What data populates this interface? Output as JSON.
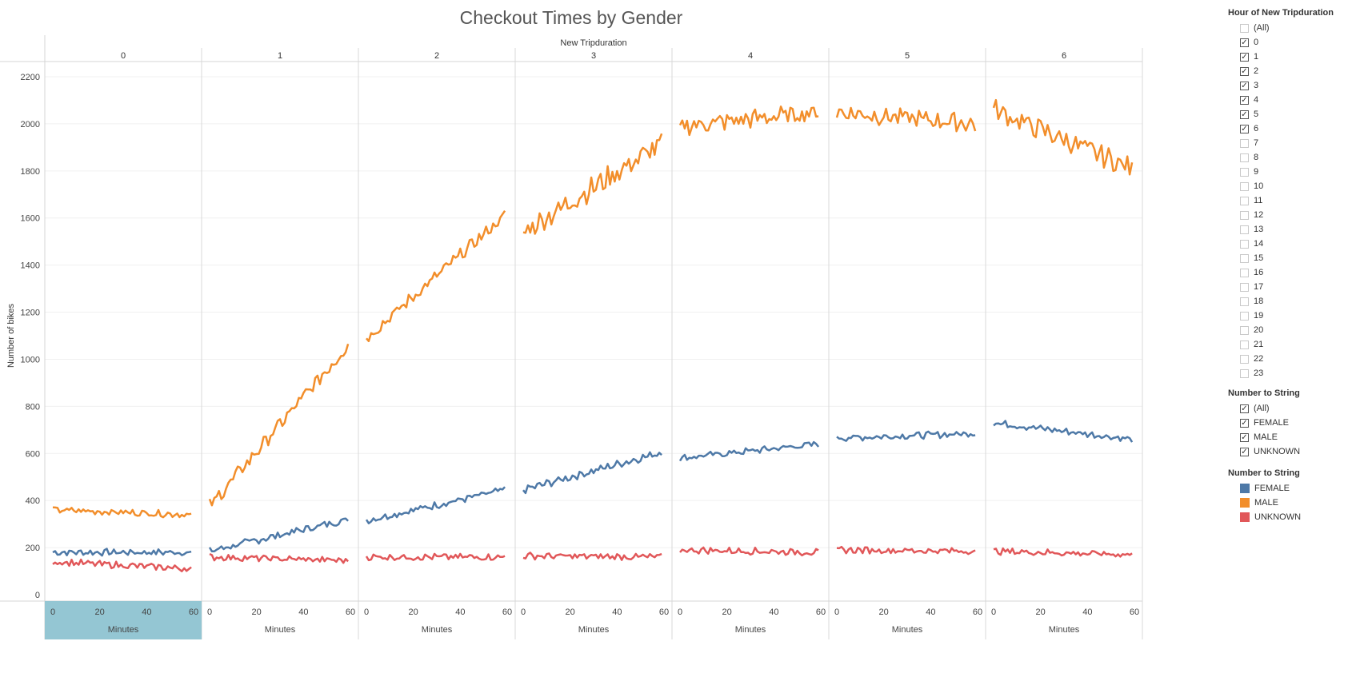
{
  "chart_data": {
    "type": "line",
    "title": "Checkout Times by Gender",
    "panel_header": "New Tripduration",
    "panels": [
      "0",
      "1",
      "2",
      "3",
      "4",
      "5",
      "6"
    ],
    "ylabel": "Number of bikes",
    "xlabel": "Minutes",
    "ylim": [
      0,
      2200
    ],
    "yticks": [
      0,
      200,
      400,
      600,
      800,
      1000,
      1200,
      1400,
      1600,
      1800,
      2000,
      2200
    ],
    "xticks": [
      0,
      20,
      40,
      60
    ],
    "xlim": [
      0,
      60
    ],
    "grid": true,
    "highlighted_panel": "0",
    "series_info": [
      {
        "name": "FEMALE",
        "color": "#4e79a7",
        "anchors": [
          [
            180,
            180
          ],
          [
            185,
            320
          ],
          [
            315,
            445
          ],
          [
            445,
            605
          ],
          [
            580,
            640
          ],
          [
            665,
            685
          ],
          [
            730,
            660
          ]
        ]
      },
      {
        "name": "MALE",
        "color": "#f28e2b",
        "anchors": [
          [
            360,
            340
          ],
          [
            375,
            1060
          ],
          [
            1090,
            1610
          ],
          [
            1540,
            1915
          ],
          [
            1990,
            2050
          ],
          [
            2050,
            2000
          ],
          [
            2060,
            1810
          ]
        ]
      },
      {
        "name": "UNKNOWN",
        "color": "#e15759",
        "anchors": [
          [
            140,
            110
          ],
          [
            160,
            145
          ],
          [
            160,
            160
          ],
          [
            165,
            160
          ],
          [
            190,
            180
          ],
          [
            190,
            185
          ],
          [
            185,
            170
          ]
        ]
      }
    ]
  },
  "filters": {
    "hour": {
      "title": "Hour of New Tripduration",
      "items": [
        {
          "label": "(All)",
          "checked": false
        },
        {
          "label": "0",
          "checked": true
        },
        {
          "label": "1",
          "checked": true
        },
        {
          "label": "2",
          "checked": true
        },
        {
          "label": "3",
          "checked": true
        },
        {
          "label": "4",
          "checked": true
        },
        {
          "label": "5",
          "checked": true
        },
        {
          "label": "6",
          "checked": true
        },
        {
          "label": "7",
          "checked": false
        },
        {
          "label": "8",
          "checked": false
        },
        {
          "label": "9",
          "checked": false
        },
        {
          "label": "10",
          "checked": false
        },
        {
          "label": "11",
          "checked": false
        },
        {
          "label": "12",
          "checked": false
        },
        {
          "label": "13",
          "checked": false
        },
        {
          "label": "14",
          "checked": false
        },
        {
          "label": "15",
          "checked": false
        },
        {
          "label": "16",
          "checked": false
        },
        {
          "label": "17",
          "checked": false
        },
        {
          "label": "18",
          "checked": false
        },
        {
          "label": "19",
          "checked": false
        },
        {
          "label": "20",
          "checked": false
        },
        {
          "label": "21",
          "checked": false
        },
        {
          "label": "22",
          "checked": false
        },
        {
          "label": "23",
          "checked": false
        }
      ]
    },
    "gender": {
      "title": "Number to String",
      "items": [
        {
          "label": "(All)",
          "checked": true
        },
        {
          "label": "FEMALE",
          "checked": true
        },
        {
          "label": "MALE",
          "checked": true
        },
        {
          "label": "UNKNOWN",
          "checked": true
        }
      ]
    }
  },
  "legend": {
    "title": "Number to String",
    "items": [
      {
        "label": "FEMALE",
        "color": "#4e79a7"
      },
      {
        "label": "MALE",
        "color": "#f28e2b"
      },
      {
        "label": "UNKNOWN",
        "color": "#e15759"
      }
    ]
  }
}
